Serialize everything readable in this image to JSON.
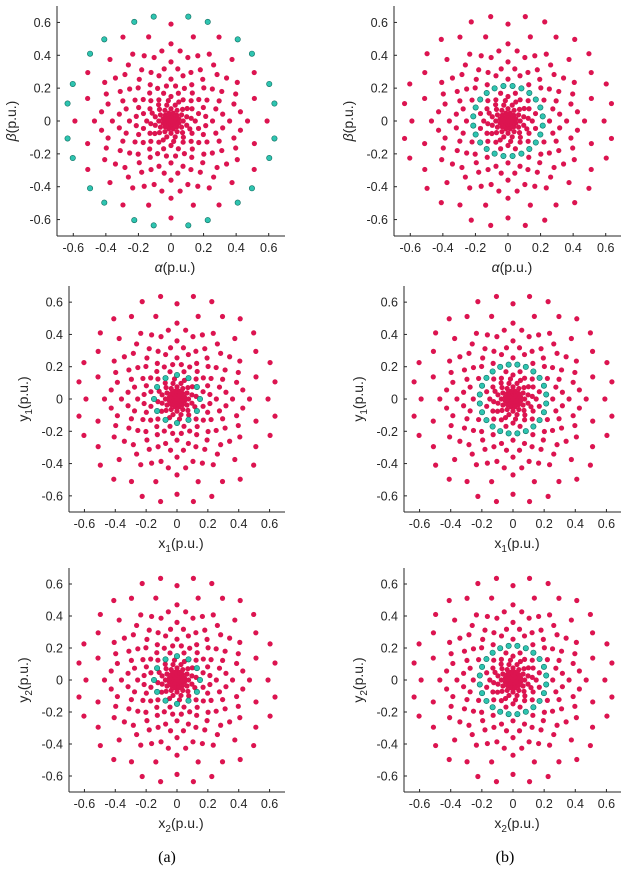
{
  "figure": {
    "captions": [
      "(a)",
      "(b)"
    ]
  },
  "colors": {
    "red_points": "#dc1450",
    "cyan_points": "#2ec4b0",
    "cyan_outline": "#0e6e60",
    "axis": "#262626"
  },
  "chart_data": [
    {
      "type": "scatter",
      "column": "(a)",
      "row": 1,
      "xlabel": {
        "base": "α",
        "sub": "",
        "unit": "(p.u.)"
      },
      "ylabel": {
        "base": "β",
        "sub": "",
        "unit": "(p.u.)"
      },
      "xlim": [
        -0.7,
        0.7
      ],
      "ylim": [
        -0.7,
        0.7
      ],
      "xticks": [
        "-0.6",
        "-0.4",
        "-0.2",
        "0",
        "0.2",
        "0.4",
        "0.6"
      ],
      "yticks": [
        "-0.6",
        "-0.4",
        "-0.2",
        "0",
        "0.2",
        "0.4",
        "0.6"
      ],
      "grid": false,
      "highlight_ring": 0.644
    },
    {
      "type": "scatter",
      "column": "(b)",
      "row": 1,
      "xlabel": {
        "base": "α",
        "sub": "",
        "unit": "(p.u.)"
      },
      "ylabel": {
        "base": "β",
        "sub": "",
        "unit": "(p.u.)"
      },
      "xlim": [
        -0.7,
        0.7
      ],
      "ylim": [
        -0.7,
        0.7
      ],
      "xticks": [
        "-0.6",
        "-0.4",
        "-0.2",
        "0",
        "0.2",
        "0.4",
        "0.6"
      ],
      "yticks": [
        "-0.6",
        "-0.4",
        "-0.2",
        "0",
        "0.2",
        "0.4",
        "0.6"
      ],
      "grid": false,
      "highlight_ring": 0.215
    },
    {
      "type": "scatter",
      "column": "(a)",
      "row": 2,
      "xlabel": {
        "base": "x",
        "sub": "1",
        "unit": "(p.u.)"
      },
      "ylabel": {
        "base": "y",
        "sub": "1",
        "unit": "(p.u.)"
      },
      "xlim": [
        -0.7,
        0.7
      ],
      "ylim": [
        -0.7,
        0.7
      ],
      "xticks": [
        "-0.6",
        "-0.4",
        "-0.2",
        "0",
        "0.2",
        "0.4",
        "0.6"
      ],
      "yticks": [
        "-0.6",
        "-0.4",
        "-0.2",
        "0",
        "0.2",
        "0.4",
        "0.6"
      ],
      "grid": false,
      "highlight_ring": 0.149
    },
    {
      "type": "scatter",
      "column": "(b)",
      "row": 2,
      "xlabel": {
        "base": "x",
        "sub": "1",
        "unit": "(p.u.)"
      },
      "ylabel": {
        "base": "y",
        "sub": "1",
        "unit": "(p.u.)"
      },
      "xlim": [
        -0.7,
        0.7
      ],
      "ylim": [
        -0.7,
        0.7
      ],
      "xticks": [
        "-0.6",
        "-0.4",
        "-0.2",
        "0",
        "0.2",
        "0.4",
        "0.6"
      ],
      "yticks": [
        "-0.6",
        "-0.4",
        "-0.2",
        "0",
        "0.2",
        "0.4",
        "0.6"
      ],
      "grid": false,
      "highlight_ring": 0.215
    },
    {
      "type": "scatter",
      "column": "(a)",
      "row": 3,
      "xlabel": {
        "base": "x",
        "sub": "2",
        "unit": "(p.u.)"
      },
      "ylabel": {
        "base": "y",
        "sub": "2",
        "unit": "(p.u.)"
      },
      "xlim": [
        -0.7,
        0.7
      ],
      "ylim": [
        -0.7,
        0.7
      ],
      "xticks": [
        "-0.6",
        "-0.4",
        "-0.2",
        "0",
        "0.2",
        "0.4",
        "0.6"
      ],
      "yticks": [
        "-0.6",
        "-0.4",
        "-0.2",
        "0",
        "0.2",
        "0.4",
        "0.6"
      ],
      "grid": false,
      "highlight_ring": 0.149
    },
    {
      "type": "scatter",
      "column": "(b)",
      "row": 3,
      "xlabel": {
        "base": "x",
        "sub": "2",
        "unit": "(p.u.)"
      },
      "ylabel": {
        "base": "y",
        "sub": "2",
        "unit": "(p.u.)"
      },
      "xlim": [
        -0.7,
        0.7
      ],
      "ylim": [
        -0.7,
        0.7
      ],
      "xticks": [
        "-0.6",
        "-0.4",
        "-0.2",
        "0",
        "0.2",
        "0.4",
        "0.6"
      ],
      "yticks": [
        "-0.6",
        "-0.4",
        "-0.2",
        "0",
        "0.2",
        "0.4",
        "0.6"
      ],
      "grid": false,
      "highlight_ring": 0.215
    }
  ],
  "point_pattern": {
    "symmetry": 12,
    "rings": [
      {
        "radius": 0.025,
        "angle_offset_deg": 0
      },
      {
        "radius": 0.05,
        "angle_offset_deg": 15
      },
      {
        "radius": 0.075,
        "angle_offset_deg": 0
      },
      {
        "radius": 0.1,
        "angle_offset_deg": 15
      },
      {
        "radius": 0.125,
        "angle_offset_deg": 7.5
      },
      {
        "radius": 0.149,
        "angle_offset_deg": 0
      },
      {
        "radius": 0.175,
        "angle_offset_deg": 15
      },
      {
        "radius": 0.215,
        "angle_offset_deg": 7.5
      },
      {
        "radius": 0.215,
        "angle_offset_deg": 22.5
      },
      {
        "radius": 0.255,
        "angle_offset_deg": 0
      },
      {
        "radius": 0.285,
        "angle_offset_deg": 15
      },
      {
        "radius": 0.32,
        "angle_offset_deg": 7.5
      },
      {
        "radius": 0.32,
        "angle_offset_deg": 22.5
      },
      {
        "radius": 0.36,
        "angle_offset_deg": 0
      },
      {
        "radius": 0.4,
        "angle_offset_deg": 15
      },
      {
        "radius": 0.43,
        "angle_offset_deg": 7.5
      },
      {
        "radius": 0.43,
        "angle_offset_deg": 22.5
      },
      {
        "radius": 0.47,
        "angle_offset_deg": 0
      },
      {
        "radius": 0.53,
        "angle_offset_deg": 15
      },
      {
        "radius": 0.59,
        "angle_offset_deg": 0
      },
      {
        "radius": 0.644,
        "angle_offset_deg": 9.5
      },
      {
        "radius": 0.644,
        "angle_offset_deg": 20.5
      }
    ]
  }
}
